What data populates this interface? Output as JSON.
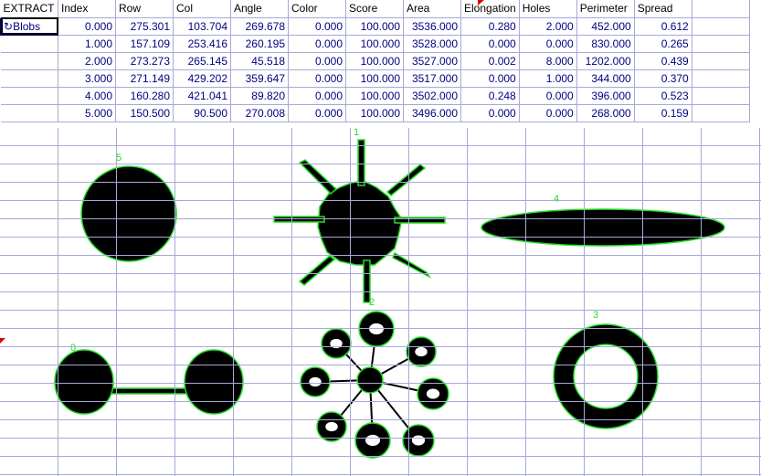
{
  "sheet": {
    "corner_label": "EXTRACT",
    "selected_cell": "Blobs",
    "columns": [
      "Index",
      "Row",
      "Col",
      "Angle",
      "Color",
      "Score",
      "Area",
      "Elongation",
      "Holes",
      "Perimeter",
      "Spread"
    ],
    "rows": [
      [
        "0.000",
        "275.301",
        "103.704",
        "269.678",
        "0.000",
        "100.000",
        "3536.000",
        "0.280",
        "2.000",
        "452.000",
        "0.612"
      ],
      [
        "1.000",
        "157.109",
        "253.416",
        "260.195",
        "0.000",
        "100.000",
        "3528.000",
        "0.000",
        "0.000",
        "830.000",
        "0.265"
      ],
      [
        "2.000",
        "273.273",
        "265.145",
        "45.518",
        "0.000",
        "100.000",
        "3527.000",
        "0.002",
        "8.000",
        "1202.000",
        "0.439"
      ],
      [
        "3.000",
        "271.149",
        "429.202",
        "359.647",
        "0.000",
        "100.000",
        "3517.000",
        "0.000",
        "1.000",
        "344.000",
        "0.370"
      ],
      [
        "4.000",
        "160.280",
        "421.041",
        "89.820",
        "0.000",
        "100.000",
        "3502.000",
        "0.248",
        "0.000",
        "396.000",
        "0.523"
      ],
      [
        "5.000",
        "150.500",
        "90.500",
        "270.008",
        "0.000",
        "100.000",
        "3496.000",
        "0.000",
        "0.000",
        "268.000",
        "0.159"
      ]
    ]
  },
  "image": {
    "blob_labels": [
      "0",
      "1",
      "2",
      "3",
      "4",
      "5"
    ],
    "colors": {
      "blob": "#000000",
      "outline": "#22dd22",
      "grid": "#a8a8d8",
      "value_text": "#000080"
    }
  }
}
